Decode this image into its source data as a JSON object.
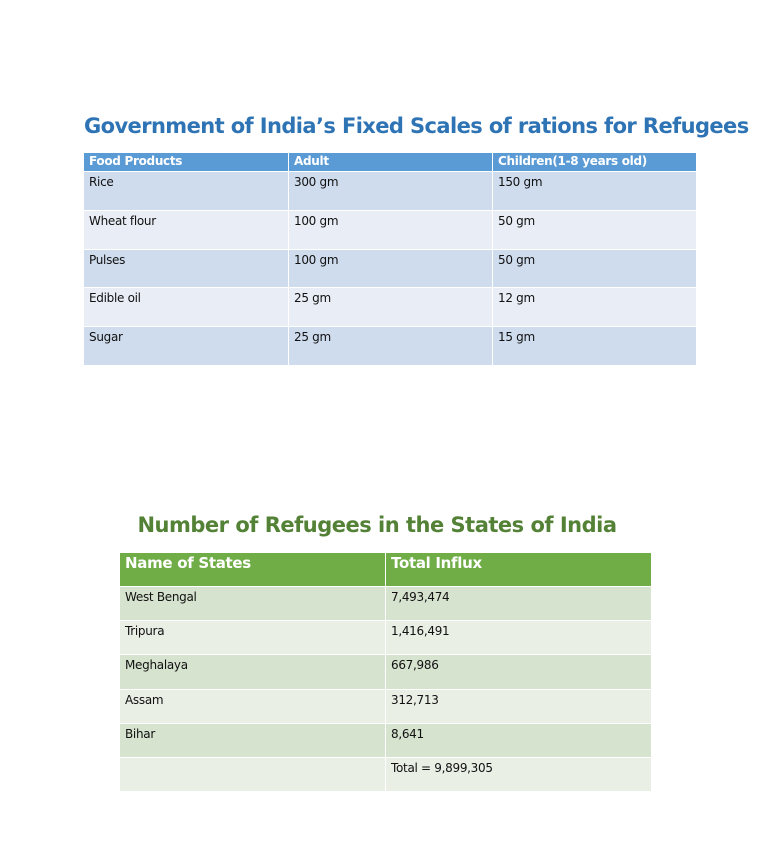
{
  "rations": {
    "title": "Government of India’s Fixed Scales of rations for Refugees",
    "header": [
      "Food Products",
      "Adult",
      "Children(1-8 years old)"
    ],
    "rows": [
      [
        "Rice",
        "300 gm",
        "150 gm"
      ],
      [
        "Wheat flour",
        "100 gm",
        "50 gm"
      ],
      [
        "Pulses",
        "100 gm",
        "50 gm"
      ],
      [
        "Edible oil",
        "25 gm",
        "12 gm"
      ],
      [
        "Sugar",
        "25 gm",
        "15 gm"
      ]
    ]
  },
  "refugees": {
    "title": "Number of Refugees in the States of India",
    "header": [
      "Name of States",
      "Total Influx"
    ],
    "rows": [
      [
        "West Bengal",
        "7,493,474"
      ],
      [
        "Tripura",
        "1,416,491"
      ],
      [
        "Meghalaya",
        "667,986"
      ],
      [
        "Assam",
        "312,713"
      ],
      [
        "Bihar",
        "8,641"
      ]
    ],
    "total": "Total = 9,899,305"
  }
}
